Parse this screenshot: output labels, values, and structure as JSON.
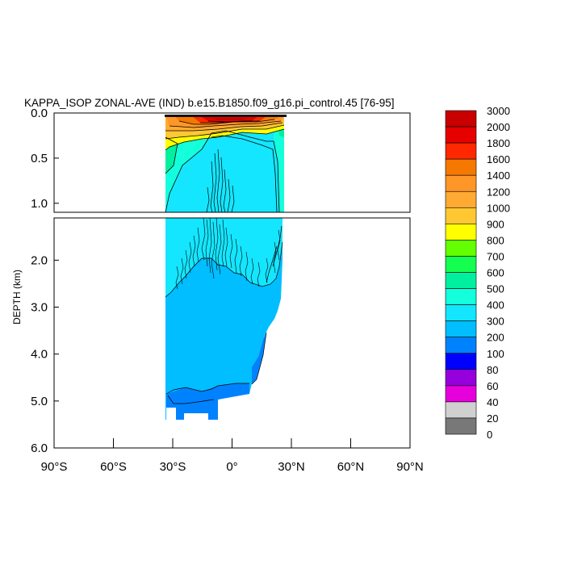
{
  "chart_data": {
    "type": "contour",
    "title": "KAPPA_ISOP ZONAL-AVE (IND) b.e15.B1850.f09_g16.pi_control.45 [76-95]",
    "ylabel": "DEPTH (km)",
    "xlabel": "",
    "xlim": [
      -90,
      90
    ],
    "ylim": [
      0,
      6
    ],
    "ylim_top_panel": [
      0,
      1.1
    ],
    "ylim_bottom_panel": [
      1.1,
      6
    ],
    "x_tick_values": [
      -90,
      -60,
      -30,
      0,
      30,
      60,
      90
    ],
    "x_tick_labels": [
      "90°S",
      "60°S",
      "30°S",
      "0°",
      "30°N",
      "60°N",
      "90°N"
    ],
    "y_ticks_top": [
      {
        "value": 0.0,
        "label": "0.0"
      },
      {
        "value": 0.5,
        "label": "0.5"
      },
      {
        "value": 1.0,
        "label": "1.0"
      }
    ],
    "y_ticks_bottom": [
      {
        "value": 2.0,
        "label": "2.0"
      },
      {
        "value": 3.0,
        "label": "3.0"
      },
      {
        "value": 4.0,
        "label": "4.0"
      },
      {
        "value": 5.0,
        "label": "5.0"
      },
      {
        "value": 6.0,
        "label": "6.0"
      }
    ],
    "colorbar": {
      "levels": [
        "3000",
        "2000",
        "1800",
        "1600",
        "1400",
        "1200",
        "1000",
        "900",
        "800",
        "700",
        "600",
        "500",
        "400",
        "300",
        "200",
        "100",
        "80",
        "60",
        "40",
        "20",
        "0"
      ],
      "colors": [
        "#c80000",
        "#e60000",
        "#ff2800",
        "#f57800",
        "#ff9628",
        "#ffaa32",
        "#ffc832",
        "#ffff00",
        "#64ff00",
        "#14ff50",
        "#00f0a0",
        "#14ffdc",
        "#14e6ff",
        "#00beff",
        "#0082ff",
        "#0000ff",
        "#9600dc",
        "#e600dc",
        "#d0d0d0",
        "#787878"
      ]
    },
    "fields": {
      "deep_interior_value_range": [
        200,
        300
      ],
      "intermediate_value_range": [
        300,
        400
      ],
      "bottom_value_range": [
        100,
        200
      ],
      "surface_max_value_range": [
        2000,
        3000
      ]
    }
  }
}
